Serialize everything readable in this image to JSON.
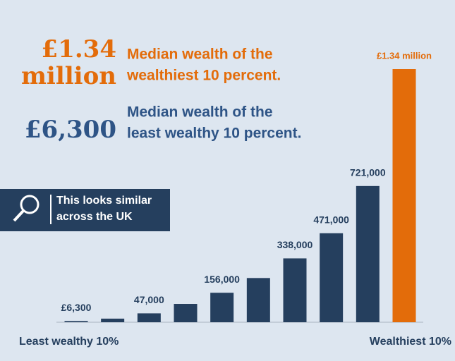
{
  "chart_data": {
    "type": "bar",
    "categories": [
      "Least wealthy 10%",
      null,
      null,
      null,
      null,
      null,
      null,
      null,
      null,
      "Wealthiest 10%"
    ],
    "values": [
      6300,
      19000,
      47000,
      97000,
      156000,
      234000,
      338000,
      471000,
      721000,
      1340000
    ],
    "value_labels": [
      "£6,300",
      null,
      "47,000",
      null,
      "156,000",
      null,
      "338,000",
      "471,000",
      "721,000",
      "£1.34 million"
    ],
    "colors": [
      "#253f5e",
      "#253f5e",
      "#253f5e",
      "#253f5e",
      "#253f5e",
      "#253f5e",
      "#253f5e",
      "#253f5e",
      "#253f5e",
      "#e36c0a"
    ],
    "ylim": [
      0,
      1340000
    ],
    "highlights": [
      {
        "figure": [
          "£1.34",
          "million"
        ],
        "text": [
          "Median wealth of the",
          "wealthiest 10 percent."
        ],
        "color": "#e36c0a"
      },
      {
        "figure": [
          "£6,300"
        ],
        "text": [
          "Median wealth of the",
          "least wealthy 10 percent."
        ],
        "color": "#2e5486"
      }
    ],
    "callout": [
      "This looks similar",
      "across the UK"
    ]
  }
}
